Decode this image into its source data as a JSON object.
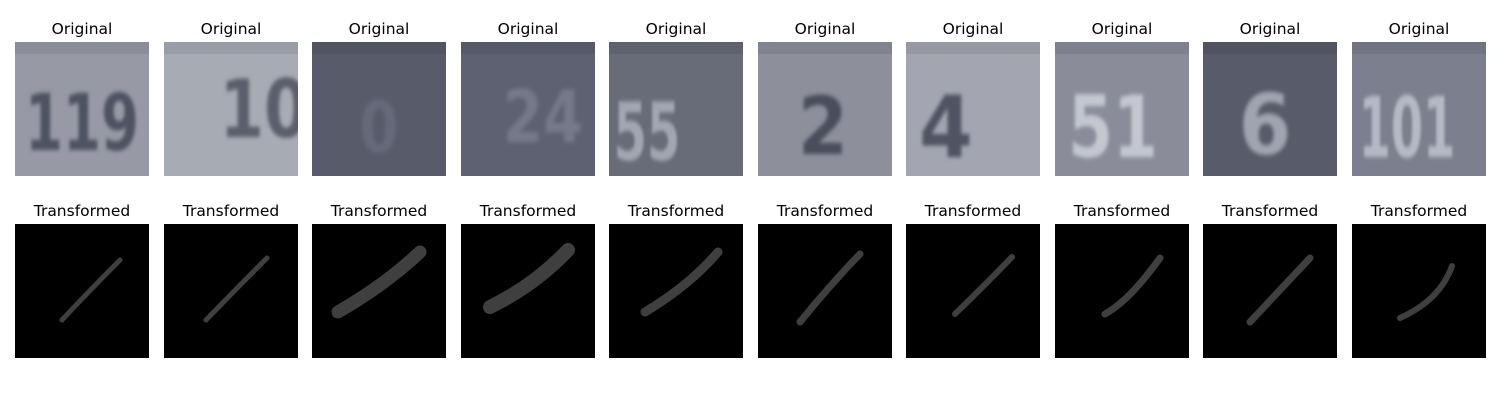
{
  "rows": [
    {
      "title": "Original",
      "kind": "original",
      "panels": [
        {
          "digits": "119",
          "bg": "#979aa5",
          "fg": "#4d5262"
        },
        {
          "digits": "10",
          "bg": "#a7abb4",
          "fg": "#5a5f6c"
        },
        {
          "digits": "0",
          "bg": "#585c6a",
          "fg": "#656a7a"
        },
        {
          "digits": "24",
          "bg": "#5e6171",
          "fg": "#74798a"
        },
        {
          "digits": "55",
          "bg": "#686b78",
          "fg": "#a3a6b1"
        },
        {
          "digits": "2",
          "bg": "#8d909b",
          "fg": "#4a4e5c"
        },
        {
          "digits": "4",
          "bg": "#a3a6b0",
          "fg": "#4f5362"
        },
        {
          "digits": "51",
          "bg": "#8a8d99",
          "fg": "#c4c7cf"
        },
        {
          "digits": "6",
          "bg": "#585b69",
          "fg": "#a1a4b0"
        },
        {
          "digits": "101",
          "bg": "#7c7f8d",
          "fg": "#b6b9c5"
        }
      ]
    },
    {
      "title": "Transformed",
      "kind": "transformed",
      "panels": [
        {
          "bg": "#000000",
          "fg": "#3f3f3f"
        },
        {
          "bg": "#000000",
          "fg": "#3f3f3f"
        },
        {
          "bg": "#000000",
          "fg": "#3f3f3f"
        },
        {
          "bg": "#000000",
          "fg": "#3f3f3f"
        },
        {
          "bg": "#000000",
          "fg": "#3f3f3f"
        },
        {
          "bg": "#000000",
          "fg": "#3f3f3f"
        },
        {
          "bg": "#000000",
          "fg": "#3f3f3f"
        },
        {
          "bg": "#000000",
          "fg": "#3f3f3f"
        },
        {
          "bg": "#000000",
          "fg": "#3f3f3f"
        },
        {
          "bg": "#000000",
          "fg": "#3f3f3f"
        }
      ]
    }
  ]
}
